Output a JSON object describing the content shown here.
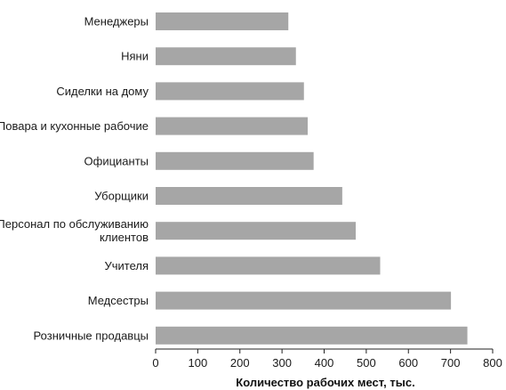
{
  "chart_data": {
    "type": "bar",
    "orientation": "horizontal",
    "categories": [
      "Менеджеры",
      "Няни",
      "Сиделки на дому",
      "Повара и кухонные рабочие",
      "Официанты",
      "Уборщики",
      "Персонал по обслуживанию клиентов",
      "Учителя",
      "Медсестры",
      "Розничные продавцы"
    ],
    "category_lines": [
      [
        "Менеджеры"
      ],
      [
        "Няни"
      ],
      [
        "Сиделки на дому"
      ],
      [
        "Повара и кухонные рабочие"
      ],
      [
        "Официанты"
      ],
      [
        "Уборщики"
      ],
      [
        "Персонал по обслуживанию",
        "клиентов"
      ],
      [
        "Учителя"
      ],
      [
        "Медсестры"
      ],
      [
        "Розничные продавцы"
      ]
    ],
    "values": [
      315,
      333,
      352,
      361,
      375,
      443,
      475,
      533,
      701,
      740
    ],
    "xlabel": "Количество рабочих мест, тыс.",
    "ylabel": "",
    "xlim": [
      0,
      800
    ],
    "xticks": [
      0,
      100,
      200,
      300,
      400,
      500,
      600,
      700,
      800
    ],
    "grid": false,
    "legend": "none",
    "bar_color": "#a6a6a6"
  }
}
